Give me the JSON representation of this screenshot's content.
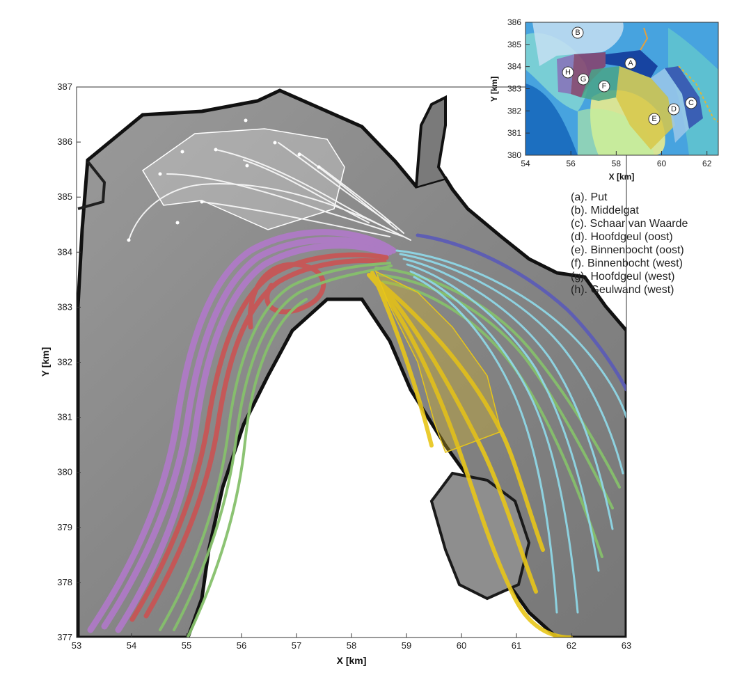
{
  "main_map": {
    "xlabel": "X [km]",
    "ylabel": "Y [km]",
    "xlim": [
      53,
      63
    ],
    "ylim": [
      377,
      387
    ],
    "x_ticks": [
      "53",
      "54",
      "55",
      "56",
      "57",
      "58",
      "59",
      "60",
      "61",
      "62",
      "63"
    ],
    "y_ticks": [
      "377",
      "378",
      "379",
      "380",
      "381",
      "382",
      "383",
      "384",
      "385",
      "386",
      "387"
    ],
    "background": "grayscale hillshade bathymetry",
    "trajectory_colors": {
      "a_put": "#5a5ab8",
      "b_middelgat": "#f2f2f2",
      "c_schaar_van_waarde": "#8fd7e6",
      "d_hoofdgeul_oost": "#a8e4ee",
      "e_binnenbocht_oost": "#e8c619",
      "f_binnenbocht_west": "#86c06c",
      "g_hoofdgeul_west": "#c95454",
      "h_geulwand_west": "#b07ac8"
    }
  },
  "inset_map": {
    "xlabel": "X [km]",
    "ylabel": "Y [km]",
    "xlim": [
      54,
      62.5
    ],
    "ylim": [
      380,
      386
    ],
    "x_ticks": [
      "54",
      "56",
      "58",
      "60",
      "62"
    ],
    "y_ticks": [
      "380",
      "381",
      "382",
      "383",
      "384",
      "385",
      "386"
    ],
    "background": "colored bathymetry (blue to yellow)",
    "zones": [
      {
        "letter": "A",
        "color": "#123a9a"
      },
      {
        "letter": "B",
        "color": "#c5dff2"
      },
      {
        "letter": "C",
        "color": "#3654b0"
      },
      {
        "letter": "D",
        "color": "#9cc8ea"
      },
      {
        "letter": "E",
        "color": "#d8c84a"
      },
      {
        "letter": "F",
        "color": "#4aa488"
      },
      {
        "letter": "G",
        "color": "#8a3e6a"
      },
      {
        "letter": "H",
        "color": "#8870b8"
      }
    ]
  },
  "legend": [
    "(a). Put",
    "(b). Middelgat",
    "(c). Schaar van Waarde",
    "(d). Hoofdgeul (oost)",
    "(e). Binnenbocht (oost)",
    "(f). Binnenbocht (west)",
    "(g). Hoofdgeul (west)",
    "(h). Geulwand (west)"
  ]
}
